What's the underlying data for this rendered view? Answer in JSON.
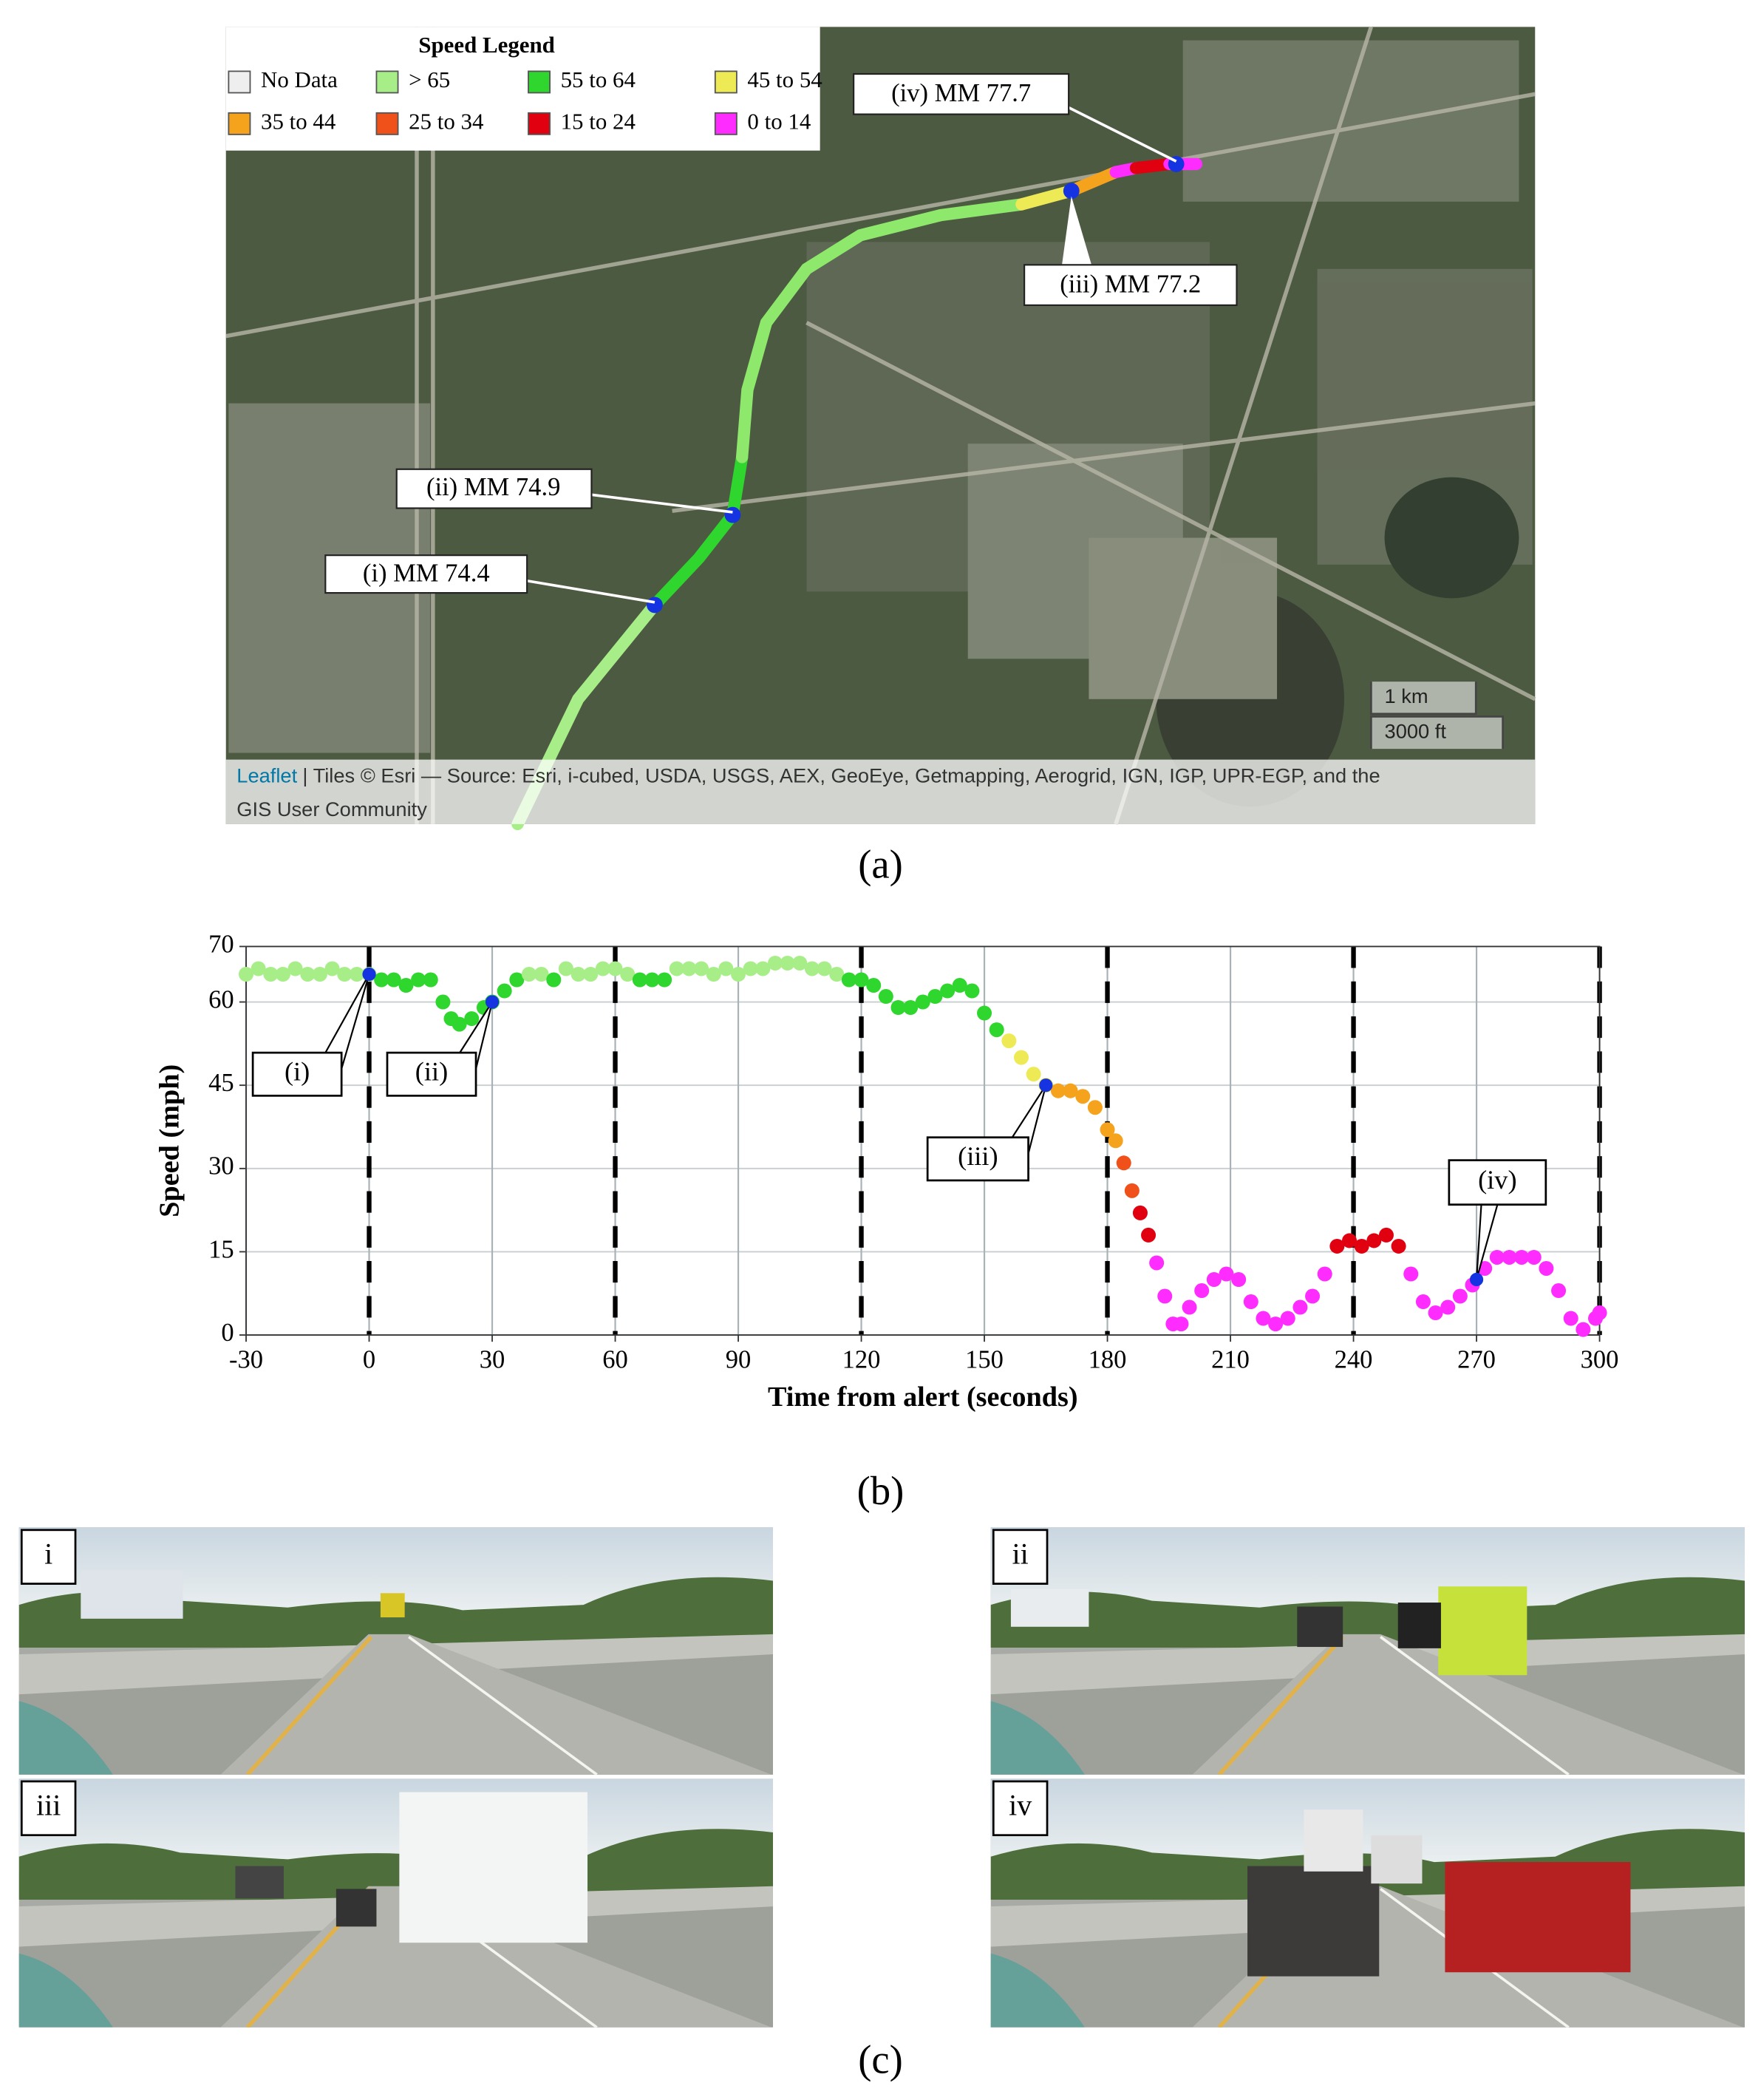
{
  "map": {
    "legend": {
      "title": "Speed Legend",
      "items": [
        {
          "label": "No Data",
          "color": "#eeeeee"
        },
        {
          "label": "> 65",
          "color": "#a8ee88"
        },
        {
          "label": "55 to 64",
          "color": "#2ed62e"
        },
        {
          "label": "45 to 54",
          "color": "#eeea55"
        },
        {
          "label": "35 to 44",
          "color": "#f5a21d"
        },
        {
          "label": "25 to 34",
          "color": "#f0501a"
        },
        {
          "label": "15 to 24",
          "color": "#e00010"
        },
        {
          "label": "0 to 14",
          "color": "#ff2cff"
        }
      ]
    },
    "callouts": [
      "(i) MM 74.4",
      "(ii) MM 74.9",
      "(iii) MM 77.2",
      "(iv) MM 77.7"
    ],
    "scale": [
      "1 km",
      "3000 ft"
    ],
    "attribution": {
      "link": "Leaflet",
      "text": "| Tiles © Esri — Source: Esri, i-cubed, USDA, USGS, AEX, GeoEye, Getmapping, Aerogrid, IGN, IGP, UPR-EGP, and the",
      "text2": "GIS User Community"
    },
    "caption": "(a)"
  },
  "chart_data": {
    "type": "scatter",
    "x_label": "Time from alert (seconds)",
    "y_label": "Speed (mph)",
    "x": [
      -30,
      -27,
      -24,
      -21,
      -18,
      -15,
      -12,
      -9,
      -6,
      -3,
      0,
      3,
      6,
      9,
      12,
      15,
      18,
      20,
      22,
      25,
      28,
      30,
      33,
      36,
      39,
      42,
      45,
      48,
      51,
      54,
      57,
      60,
      63,
      66,
      69,
      72,
      75,
      78,
      81,
      84,
      87,
      90,
      93,
      96,
      99,
      102,
      105,
      108,
      111,
      114,
      117,
      120,
      123,
      126,
      129,
      132,
      135,
      138,
      141,
      144,
      147,
      150,
      153,
      156,
      159,
      162,
      165,
      168,
      171,
      174,
      177,
      180,
      182,
      184,
      186,
      188,
      190,
      192,
      194,
      196,
      198,
      200,
      203,
      206,
      209,
      212,
      215,
      218,
      221,
      224,
      227,
      230,
      233,
      236,
      239,
      242,
      245,
      248,
      251,
      254,
      257,
      260,
      263,
      266,
      269,
      272,
      275,
      278,
      281,
      284,
      287,
      290,
      293,
      296,
      299,
      300
    ],
    "values": [
      65,
      66,
      65,
      65,
      66,
      65,
      65,
      66,
      65,
      65,
      65,
      64,
      64,
      63,
      64,
      64,
      60,
      57,
      56,
      57,
      59,
      60,
      62,
      64,
      65,
      65,
      64,
      66,
      65,
      65,
      66,
      66,
      65,
      64,
      64,
      64,
      66,
      66,
      66,
      65,
      66,
      65,
      66,
      66,
      67,
      67,
      67,
      66,
      66,
      65,
      64,
      64,
      63,
      61,
      59,
      59,
      60,
      61,
      62,
      63,
      62,
      58,
      55,
      53,
      50,
      47,
      45,
      44,
      44,
      43,
      41,
      37,
      35,
      31,
      26,
      22,
      18,
      13,
      7,
      2,
      2,
      5,
      8,
      10,
      11,
      10,
      6,
      3,
      2,
      3,
      5,
      7,
      11,
      16,
      17,
      16,
      17,
      18,
      16,
      11,
      6,
      4,
      5,
      7,
      9,
      12,
      14,
      14,
      14,
      14,
      12,
      8,
      3,
      1,
      3,
      4
    ],
    "colors": [
      "#a8ee88",
      "#a8ee88",
      "#a8ee88",
      "#a8ee88",
      "#a8ee88",
      "#a8ee88",
      "#a8ee88",
      "#a8ee88",
      "#a8ee88",
      "#a8ee88",
      "#a8ee88",
      "#2ed62e",
      "#2ed62e",
      "#2ed62e",
      "#2ed62e",
      "#2ed62e",
      "#2ed62e",
      "#2ed62e",
      "#2ed62e",
      "#2ed62e",
      "#2ed62e",
      "#2ed62e",
      "#2ed62e",
      "#2ed62e",
      "#a8ee88",
      "#a8ee88",
      "#2ed62e",
      "#a8ee88",
      "#a8ee88",
      "#a8ee88",
      "#a8ee88",
      "#a8ee88",
      "#a8ee88",
      "#2ed62e",
      "#2ed62e",
      "#2ed62e",
      "#a8ee88",
      "#a8ee88",
      "#a8ee88",
      "#a8ee88",
      "#a8ee88",
      "#a8ee88",
      "#a8ee88",
      "#a8ee88",
      "#a8ee88",
      "#a8ee88",
      "#a8ee88",
      "#a8ee88",
      "#a8ee88",
      "#a8ee88",
      "#2ed62e",
      "#2ed62e",
      "#2ed62e",
      "#2ed62e",
      "#2ed62e",
      "#2ed62e",
      "#2ed62e",
      "#2ed62e",
      "#2ed62e",
      "#2ed62e",
      "#2ed62e",
      "#2ed62e",
      "#2ed62e",
      "#eeea55",
      "#eeea55",
      "#eeea55",
      "#eeea55",
      "#f5a21d",
      "#f5a21d",
      "#f5a21d",
      "#f5a21d",
      "#f5a21d",
      "#f5a21d",
      "#f0501a",
      "#f0501a",
      "#e00010",
      "#e00010",
      "#ff2cff",
      "#ff2cff",
      "#ff2cff",
      "#ff2cff",
      "#ff2cff",
      "#ff2cff",
      "#ff2cff",
      "#ff2cff",
      "#ff2cff",
      "#ff2cff",
      "#ff2cff",
      "#ff2cff",
      "#ff2cff",
      "#ff2cff",
      "#ff2cff",
      "#ff2cff",
      "#e00010",
      "#e00010",
      "#e00010",
      "#e00010",
      "#e00010",
      "#e00010",
      "#ff2cff",
      "#ff2cff",
      "#ff2cff",
      "#ff2cff",
      "#ff2cff",
      "#ff2cff",
      "#ff2cff",
      "#ff2cff",
      "#ff2cff",
      "#ff2cff",
      "#ff2cff",
      "#ff2cff",
      "#ff2cff",
      "#ff2cff",
      "#ff2cff",
      "#ff2cff",
      "#ff2cff"
    ],
    "annotations": [
      {
        "label": "(i)",
        "x": 0,
        "y": 65
      },
      {
        "label": "(ii)",
        "x": 30,
        "y": 60
      },
      {
        "label": "(iii)",
        "x": 165,
        "y": 45
      },
      {
        "label": "(iv)",
        "x": 270,
        "y": 10
      }
    ],
    "marker_color": "#1533e0",
    "xlim": [
      -30,
      300
    ],
    "ylim": [
      0,
      70
    ],
    "xticks": [
      -30,
      0,
      30,
      60,
      90,
      120,
      150,
      180,
      210,
      240,
      270,
      300
    ],
    "yticks": [
      0,
      15,
      30,
      45,
      60,
      70
    ],
    "dashed_lines": [
      0,
      60,
      120,
      180,
      240,
      300
    ],
    "grid": true,
    "caption": "(b)"
  },
  "photos": {
    "panels": [
      {
        "label": "i"
      },
      {
        "label": "ii"
      },
      {
        "label": "iii"
      },
      {
        "label": "iv"
      }
    ],
    "caption": "(c)"
  }
}
